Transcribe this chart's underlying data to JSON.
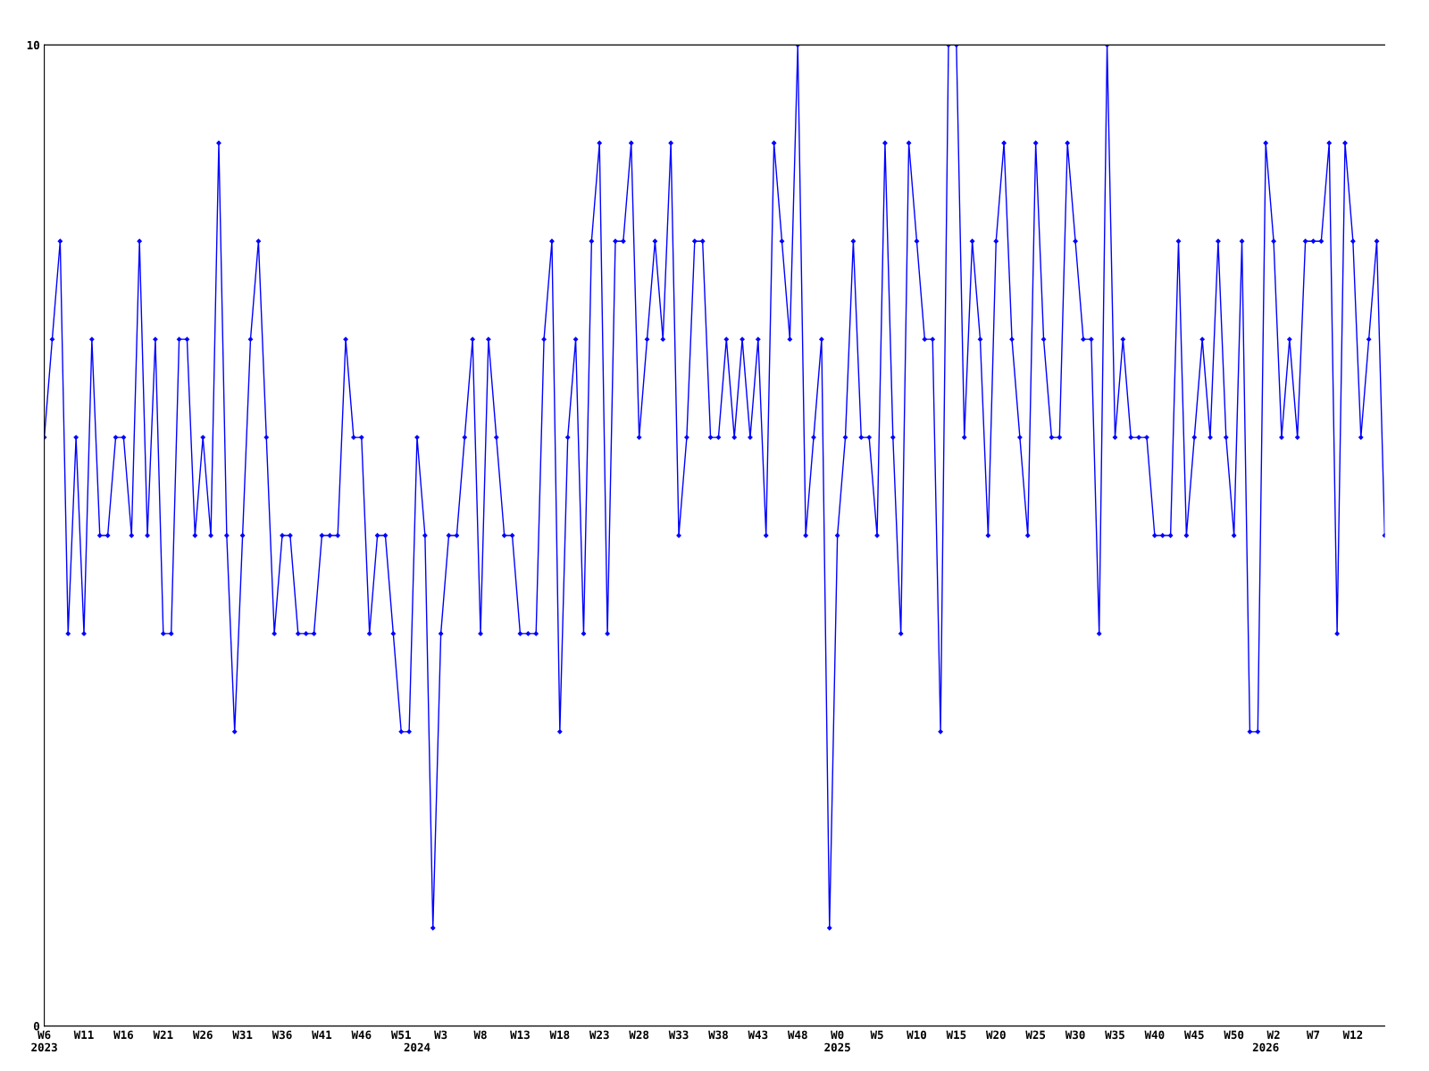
{
  "chart_data": {
    "type": "line",
    "categories": [
      "W6\n2023",
      null,
      null,
      null,
      null,
      "W11",
      null,
      null,
      null,
      null,
      "W16",
      null,
      null,
      null,
      null,
      "W21",
      null,
      null,
      null,
      null,
      "W26",
      null,
      null,
      null,
      null,
      "W31",
      null,
      null,
      null,
      null,
      "W36",
      null,
      null,
      null,
      null,
      "W41",
      null,
      null,
      null,
      null,
      "W46",
      null,
      null,
      null,
      null,
      "W51",
      null,
      "\n2024",
      null,
      null,
      "W3",
      null,
      null,
      null,
      null,
      "W8",
      null,
      null,
      null,
      null,
      "W13",
      null,
      null,
      null,
      null,
      "W18",
      null,
      null,
      null,
      null,
      "W23",
      null,
      null,
      null,
      null,
      "W28",
      null,
      null,
      null,
      null,
      "W33",
      null,
      null,
      null,
      null,
      "W38",
      null,
      null,
      null,
      null,
      "W43",
      null,
      null,
      null,
      null,
      "W48",
      null,
      null,
      null,
      null,
      "W0\n2025",
      null,
      null,
      null,
      null,
      "W5",
      null,
      null,
      null,
      null,
      "W10",
      null,
      null,
      null,
      null,
      "W15",
      null,
      null,
      null,
      null,
      "W20",
      null,
      null,
      null,
      null,
      "W25",
      null,
      null,
      null,
      null,
      "W30",
      null,
      null,
      null,
      null,
      "W35",
      null,
      null,
      null,
      null,
      "W40",
      null,
      null,
      null,
      null,
      "W45",
      null,
      null,
      null,
      null,
      "W50",
      null,
      null,
      null,
      "\n2026",
      "W2",
      null,
      null,
      null,
      null,
      "W7",
      null,
      null,
      null,
      null,
      "W12",
      null,
      null,
      null,
      null
    ],
    "series": [
      {
        "color": "#0000ff",
        "values": [
          6,
          7,
          8,
          4,
          6,
          4,
          7,
          5,
          5,
          6,
          6,
          5,
          8,
          5,
          7,
          4,
          4,
          7,
          7,
          5,
          6,
          5,
          9,
          5,
          3,
          5,
          7,
          8,
          6,
          4,
          5,
          5,
          4,
          4,
          4,
          5,
          5,
          5,
          7,
          6,
          6,
          4,
          5,
          5,
          4,
          3,
          3,
          6,
          5,
          1,
          4,
          5,
          5,
          6,
          7,
          4,
          7,
          6,
          5,
          5,
          4,
          4,
          4,
          7,
          8,
          3,
          6,
          7,
          4,
          8,
          9,
          4,
          8,
          8,
          9,
          6,
          7,
          8,
          7,
          9,
          5,
          6,
          8,
          8,
          6,
          6,
          7,
          6,
          7,
          6,
          7,
          5,
          9,
          8,
          7,
          10,
          5,
          6,
          7,
          1,
          5,
          6,
          8,
          6,
          6,
          5,
          9,
          6,
          4,
          9,
          8,
          7,
          7,
          3,
          10,
          10,
          6,
          8,
          7,
          5,
          8,
          9,
          7,
          6,
          5,
          9,
          7,
          6,
          6,
          9,
          8,
          7,
          7,
          4,
          10,
          6,
          7,
          6,
          6,
          6,
          5,
          5,
          5,
          8,
          5,
          6,
          7,
          6,
          8,
          6,
          5,
          8,
          3,
          3,
          9,
          8,
          6,
          7,
          6,
          8,
          8,
          8,
          9,
          4,
          9,
          8,
          6,
          7,
          8,
          5
        ]
      }
    ],
    "ylim": [
      0,
      10
    ],
    "yticks": [
      0,
      10
    ],
    "grid": false,
    "marker": "diamond",
    "line_style": "solid"
  }
}
